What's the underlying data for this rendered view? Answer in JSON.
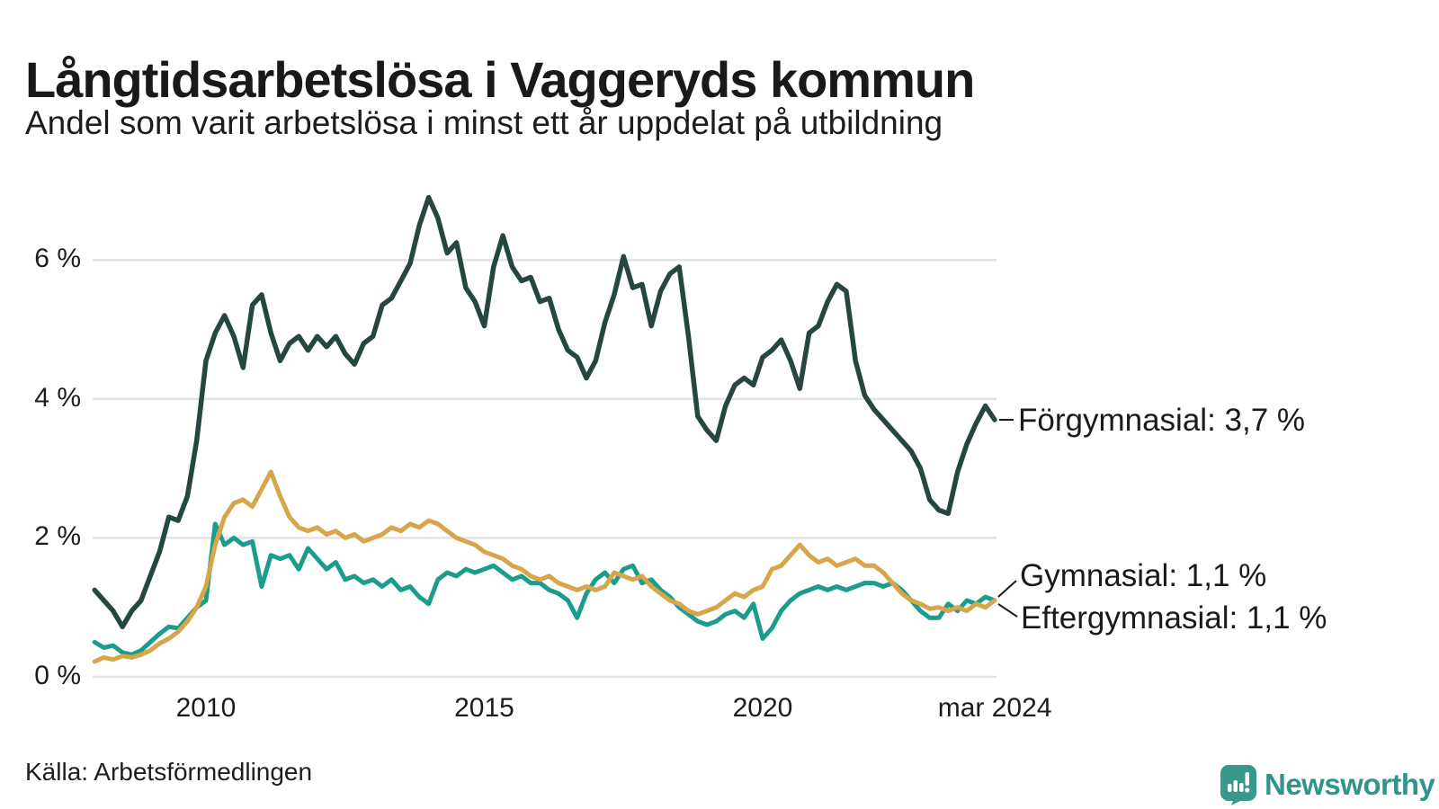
{
  "header": {
    "title": "Långtidsarbetslösa i Vaggeryds kommun",
    "subtitle": "Andel som varit arbetslösa i minst ett år uppdelat på utbildning"
  },
  "annotations": {
    "forgymnasial": "Förgymnasial: 3,7 %",
    "gymnasial": "Gymnasial: 1,1 %",
    "eftergymnasial": "Eftergymnasial: 1,1 %"
  },
  "footer": {
    "source": "Källa: Arbetsförmedlingen"
  },
  "logo": {
    "wordmark": "Newsworthy",
    "brand_color": "#2f948a",
    "icon_color": "#38998b",
    "icon_name": "newsworthy-speech-bubble-bar-chart-icon"
  },
  "chart_data": {
    "type": "line",
    "title": "Långtidsarbetslösa i Vaggeryds kommun",
    "subtitle": "Andel som varit arbetslösa i minst ett år uppdelat på utbildning",
    "xlabel": "",
    "ylabel": "",
    "ylim": [
      0,
      7
    ],
    "xlim": [
      2008.0,
      2024.25
    ],
    "grid": "horizontal",
    "legend_position": "right-end-labels",
    "x_start": 2008.0,
    "x_step_years": 0.166667,
    "x_ticks": [
      {
        "v": 2010,
        "label": "2010"
      },
      {
        "v": 2015,
        "label": "2015"
      },
      {
        "v": 2020,
        "label": "2020"
      },
      {
        "v": 2024.17,
        "label": "mar 2024"
      }
    ],
    "y_ticks": [
      {
        "v": 0,
        "label": "0 %"
      },
      {
        "v": 2,
        "label": "2 %"
      },
      {
        "v": 4,
        "label": "4 %"
      },
      {
        "v": 6,
        "label": "6 %"
      }
    ],
    "grid_color": "#e4e4e7",
    "series": [
      {
        "name": "Förgymnasial",
        "color": "#264741",
        "end_value_label": "3,7 %",
        "values": [
          1.25,
          1.1,
          0.95,
          0.72,
          0.95,
          1.1,
          1.45,
          1.8,
          2.3,
          2.25,
          2.6,
          3.4,
          4.55,
          4.95,
          5.2,
          4.9,
          4.45,
          5.35,
          5.5,
          4.95,
          4.55,
          4.8,
          4.9,
          4.7,
          4.9,
          4.75,
          4.9,
          4.65,
          4.5,
          4.8,
          4.9,
          5.35,
          5.45,
          5.7,
          5.95,
          6.5,
          6.9,
          6.6,
          6.1,
          6.25,
          5.6,
          5.4,
          5.05,
          5.9,
          6.35,
          5.9,
          5.7,
          5.75,
          5.4,
          5.45,
          5.0,
          4.7,
          4.6,
          4.3,
          4.55,
          5.1,
          5.5,
          6.05,
          5.6,
          5.65,
          5.05,
          5.55,
          5.8,
          5.9,
          4.9,
          3.75,
          3.55,
          3.4,
          3.9,
          4.2,
          4.3,
          4.2,
          4.6,
          4.7,
          4.85,
          4.55,
          4.15,
          4.95,
          5.05,
          5.4,
          5.65,
          5.55,
          4.55,
          4.05,
          3.85,
          3.7,
          3.55,
          3.4,
          3.25,
          3.0,
          2.55,
          2.4,
          2.35,
          2.95,
          3.35,
          3.65,
          3.9,
          3.7
        ]
      },
      {
        "name": "Gymnasial",
        "color": "#1b9c8c",
        "end_value_label": "1,1 %",
        "values": [
          0.5,
          0.42,
          0.45,
          0.35,
          0.32,
          0.38,
          0.5,
          0.62,
          0.72,
          0.7,
          0.85,
          1.0,
          1.1,
          2.2,
          1.9,
          2.0,
          1.9,
          1.95,
          1.3,
          1.75,
          1.7,
          1.75,
          1.55,
          1.85,
          1.7,
          1.55,
          1.65,
          1.4,
          1.45,
          1.35,
          1.4,
          1.3,
          1.4,
          1.25,
          1.3,
          1.15,
          1.05,
          1.4,
          1.5,
          1.45,
          1.55,
          1.5,
          1.55,
          1.6,
          1.5,
          1.4,
          1.45,
          1.35,
          1.35,
          1.25,
          1.2,
          1.1,
          0.85,
          1.2,
          1.4,
          1.5,
          1.35,
          1.55,
          1.6,
          1.35,
          1.4,
          1.25,
          1.15,
          1.0,
          0.9,
          0.8,
          0.75,
          0.8,
          0.9,
          0.95,
          0.85,
          1.05,
          0.55,
          0.7,
          0.95,
          1.1,
          1.2,
          1.25,
          1.3,
          1.25,
          1.3,
          1.25,
          1.3,
          1.35,
          1.35,
          1.3,
          1.35,
          1.25,
          1.1,
          0.95,
          0.85,
          0.85,
          1.05,
          0.95,
          1.1,
          1.05,
          1.15,
          1.1
        ]
      },
      {
        "name": "Eftergymnasial",
        "color": "#d7a64a",
        "end_value_label": "1,1 %",
        "values": [
          0.22,
          0.28,
          0.25,
          0.3,
          0.28,
          0.32,
          0.38,
          0.48,
          0.55,
          0.65,
          0.8,
          1.0,
          1.3,
          1.9,
          2.3,
          2.5,
          2.55,
          2.45,
          2.7,
          2.95,
          2.6,
          2.3,
          2.15,
          2.1,
          2.15,
          2.05,
          2.1,
          2.0,
          2.05,
          1.95,
          2.0,
          2.05,
          2.15,
          2.1,
          2.2,
          2.15,
          2.25,
          2.2,
          2.1,
          2.0,
          1.95,
          1.9,
          1.8,
          1.75,
          1.7,
          1.6,
          1.55,
          1.45,
          1.4,
          1.45,
          1.35,
          1.3,
          1.25,
          1.3,
          1.25,
          1.3,
          1.5,
          1.45,
          1.4,
          1.45,
          1.3,
          1.2,
          1.1,
          1.05,
          0.95,
          0.9,
          0.95,
          1.0,
          1.1,
          1.2,
          1.15,
          1.25,
          1.3,
          1.55,
          1.6,
          1.75,
          1.9,
          1.75,
          1.65,
          1.7,
          1.6,
          1.65,
          1.7,
          1.6,
          1.6,
          1.5,
          1.35,
          1.2,
          1.1,
          1.05,
          0.98,
          1.0,
          0.95,
          1.0,
          0.95,
          1.05,
          1.0,
          1.1
        ]
      }
    ]
  }
}
